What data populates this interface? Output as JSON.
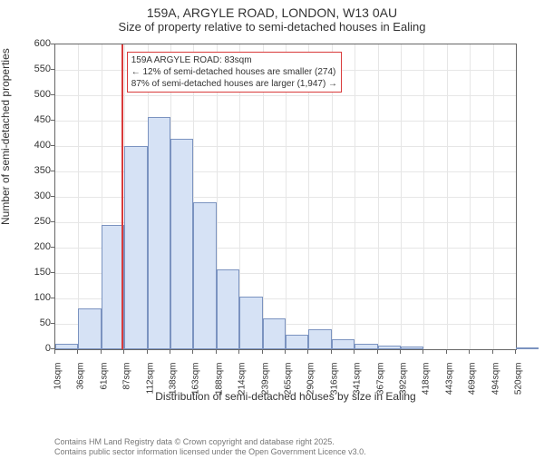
{
  "title": "159A, ARGYLE ROAD, LONDON, W13 0AU",
  "subtitle": "Size of property relative to semi-detached houses in Ealing",
  "ylabel": "Number of semi-detached properties",
  "xlabel": "Distribution of semi-detached houses by size in Ealing",
  "footer_line1": "Contains HM Land Registry data © Crown copyright and database right 2025.",
  "footer_line2": "Contains public sector information licensed under the Open Government Licence v3.0.",
  "chart": {
    "type": "histogram",
    "ylim": [
      0,
      600
    ],
    "ytick_step": 50,
    "xtick_labels": [
      "10sqm",
      "36sqm",
      "61sqm",
      "87sqm",
      "112sqm",
      "138sqm",
      "163sqm",
      "188sqm",
      "214sqm",
      "239sqm",
      "265sqm",
      "290sqm",
      "316sqm",
      "341sqm",
      "367sqm",
      "392sqm",
      "418sqm",
      "443sqm",
      "469sqm",
      "494sqm",
      "520sqm"
    ],
    "bar_fill": "#d6e2f5",
    "bar_stroke": "#7b93c0",
    "bar_values": [
      10,
      80,
      245,
      400,
      458,
      415,
      290,
      158,
      103,
      60,
      28,
      40,
      20,
      10,
      8,
      5,
      0,
      0,
      0,
      0,
      2
    ],
    "grid_color": "#e6e6e6",
    "background_color": "#ffffff",
    "axis_color": "#666666",
    "label_fontsize": 12,
    "tick_fontsize": 11
  },
  "marker": {
    "color": "#d93a3a",
    "x_value_sqm": 83,
    "callout_border": "#d93a3a",
    "line1": "159A ARGYLE ROAD: 83sqm",
    "line2": "← 12% of semi-detached houses are smaller (274)",
    "line3": "87% of semi-detached houses are larger (1,947) →"
  }
}
